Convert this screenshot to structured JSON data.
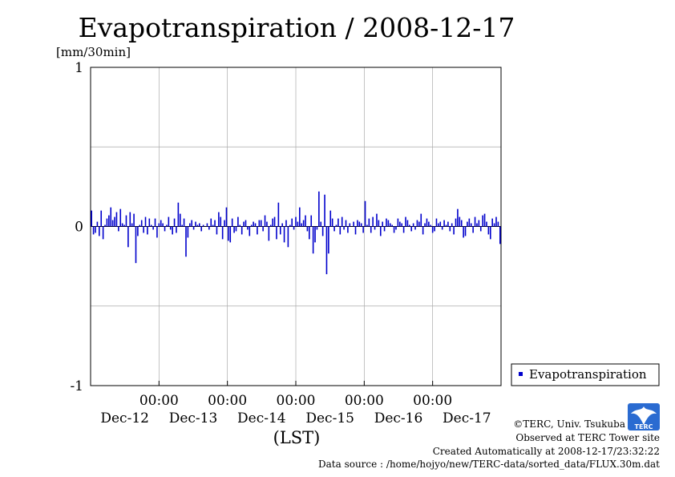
{
  "chart_data": {
    "type": "bar",
    "title": "Evapotranspiration / 2008-12-17",
    "ylabel": "[mm/30min]",
    "xlabel": "(LST)",
    "ylim": [
      -1,
      1
    ],
    "y_ticks": [
      "1",
      "0",
      "-1"
    ],
    "x_ticks": [
      {
        "time": "00:00",
        "date": "Dec-12"
      },
      {
        "time": "00:00",
        "date": "Dec-13"
      },
      {
        "time": "00:00",
        "date": "Dec-14"
      },
      {
        "time": "00:00",
        "date": "Dec-15"
      },
      {
        "time": "00:00",
        "date": "Dec-16"
      },
      {
        "time": "00:00",
        "date": "Dec-17"
      }
    ],
    "grid": true,
    "legend_position": "bottom-right",
    "color": "#0000cc",
    "series": [
      {
        "name": "Evapotranspiration",
        "values": [
          0.1,
          -0.05,
          -0.04,
          0.03,
          -0.06,
          0.1,
          -0.08,
          0.01,
          0.05,
          0.07,
          0.12,
          0.04,
          0.06,
          0.09,
          -0.03,
          0.11,
          0.02,
          0.01,
          0.07,
          -0.13,
          0.09,
          0.02,
          0.08,
          -0.23,
          -0.06,
          0.01,
          0.04,
          -0.04,
          0.06,
          -0.05,
          0.05,
          0.01,
          -0.02,
          0.05,
          -0.07,
          0.02,
          0.04,
          0.02,
          -0.03,
          0.01,
          0.06,
          -0.02,
          -0.05,
          0.05,
          -0.04,
          0.15,
          0.08,
          0.01,
          0.05,
          -0.19,
          -0.07,
          0.02,
          0.04,
          -0.02,
          0.03,
          0.01,
          0.02,
          -0.03,
          0.01,
          0.0,
          0.02,
          -0.02,
          0.05,
          0.01,
          0.04,
          -0.05,
          0.09,
          0.06,
          -0.08,
          0.04,
          0.12,
          -0.09,
          -0.1,
          0.05,
          -0.04,
          -0.03,
          0.06,
          0.01,
          -0.05,
          0.03,
          0.04,
          -0.02,
          -0.06,
          0.01,
          0.03,
          0.02,
          -0.05,
          0.04,
          0.04,
          -0.03,
          0.07,
          0.03,
          -0.09,
          0.01,
          0.05,
          0.06,
          -0.08,
          0.15,
          -0.05,
          0.02,
          -0.1,
          0.04,
          -0.13,
          0.01,
          0.05,
          -0.02,
          0.06,
          0.03,
          0.12,
          0.02,
          0.04,
          0.07,
          -0.03,
          -0.08,
          0.07,
          -0.17,
          -0.1,
          -0.02,
          0.22,
          0.03,
          -0.06,
          0.2,
          -0.3,
          -0.17,
          0.1,
          0.05,
          -0.03,
          0.01,
          0.05,
          -0.05,
          0.06,
          -0.02,
          0.04,
          -0.04,
          0.02,
          0.0,
          0.03,
          -0.05,
          0.04,
          0.03,
          0.02,
          -0.04,
          0.16,
          0.01,
          0.05,
          -0.04,
          0.06,
          -0.02,
          0.08,
          0.04,
          -0.06,
          0.03,
          -0.03,
          0.05,
          0.04,
          0.02,
          0.01,
          -0.04,
          -0.02,
          0.05,
          0.03,
          0.02,
          -0.04,
          0.06,
          0.04,
          0.01,
          -0.03,
          0.02,
          -0.02,
          0.04,
          0.03,
          0.08,
          -0.05,
          0.02,
          0.05,
          0.03,
          0.01,
          -0.04,
          -0.03,
          0.05,
          0.02,
          0.03,
          -0.02,
          0.04,
          0.01,
          0.03,
          -0.03,
          0.02,
          -0.05,
          0.05,
          0.11,
          0.06,
          0.04,
          -0.07,
          -0.06,
          0.03,
          0.05,
          0.02,
          -0.04,
          0.06,
          0.02,
          0.04,
          -0.03,
          0.07,
          0.08,
          0.03,
          -0.05,
          -0.08,
          0.05,
          0.02,
          0.06,
          0.03,
          -0.11
        ]
      }
    ]
  },
  "footer": {
    "copyright": "©TERC, Univ. Tsukuba",
    "site": "Observed at TERC Tower site",
    "created": "Created Automatically at 2008-12-17/23:32:22",
    "source": "Data source : /home/hojyo/new/TERC-data/sorted_data/FLUX.30m.dat"
  },
  "logo": {
    "text": "TERC"
  }
}
